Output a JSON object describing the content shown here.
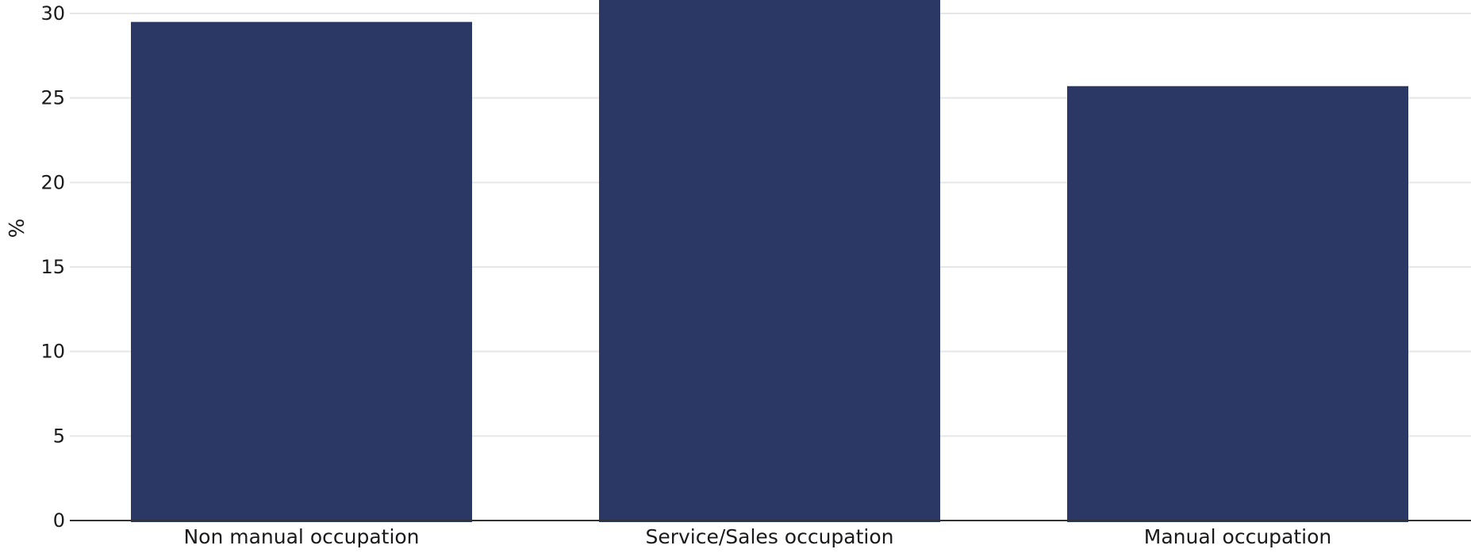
{
  "colors": {
    "bar": "#2b3764",
    "grid": "#e6e6e6",
    "axis": "#333333",
    "background": "#ffffff"
  },
  "chart_data": {
    "type": "bar",
    "title": "",
    "xlabel": "",
    "ylabel": "%",
    "ylim": [
      0,
      30
    ],
    "yticks": [
      0,
      5,
      10,
      15,
      20,
      25,
      30
    ],
    "grid": true,
    "legend": "none",
    "categories": [
      "Non manual occupation",
      "Service/Sales occupation",
      "Manual occupation"
    ],
    "values": [
      29.5,
      30.9,
      25.7
    ]
  }
}
